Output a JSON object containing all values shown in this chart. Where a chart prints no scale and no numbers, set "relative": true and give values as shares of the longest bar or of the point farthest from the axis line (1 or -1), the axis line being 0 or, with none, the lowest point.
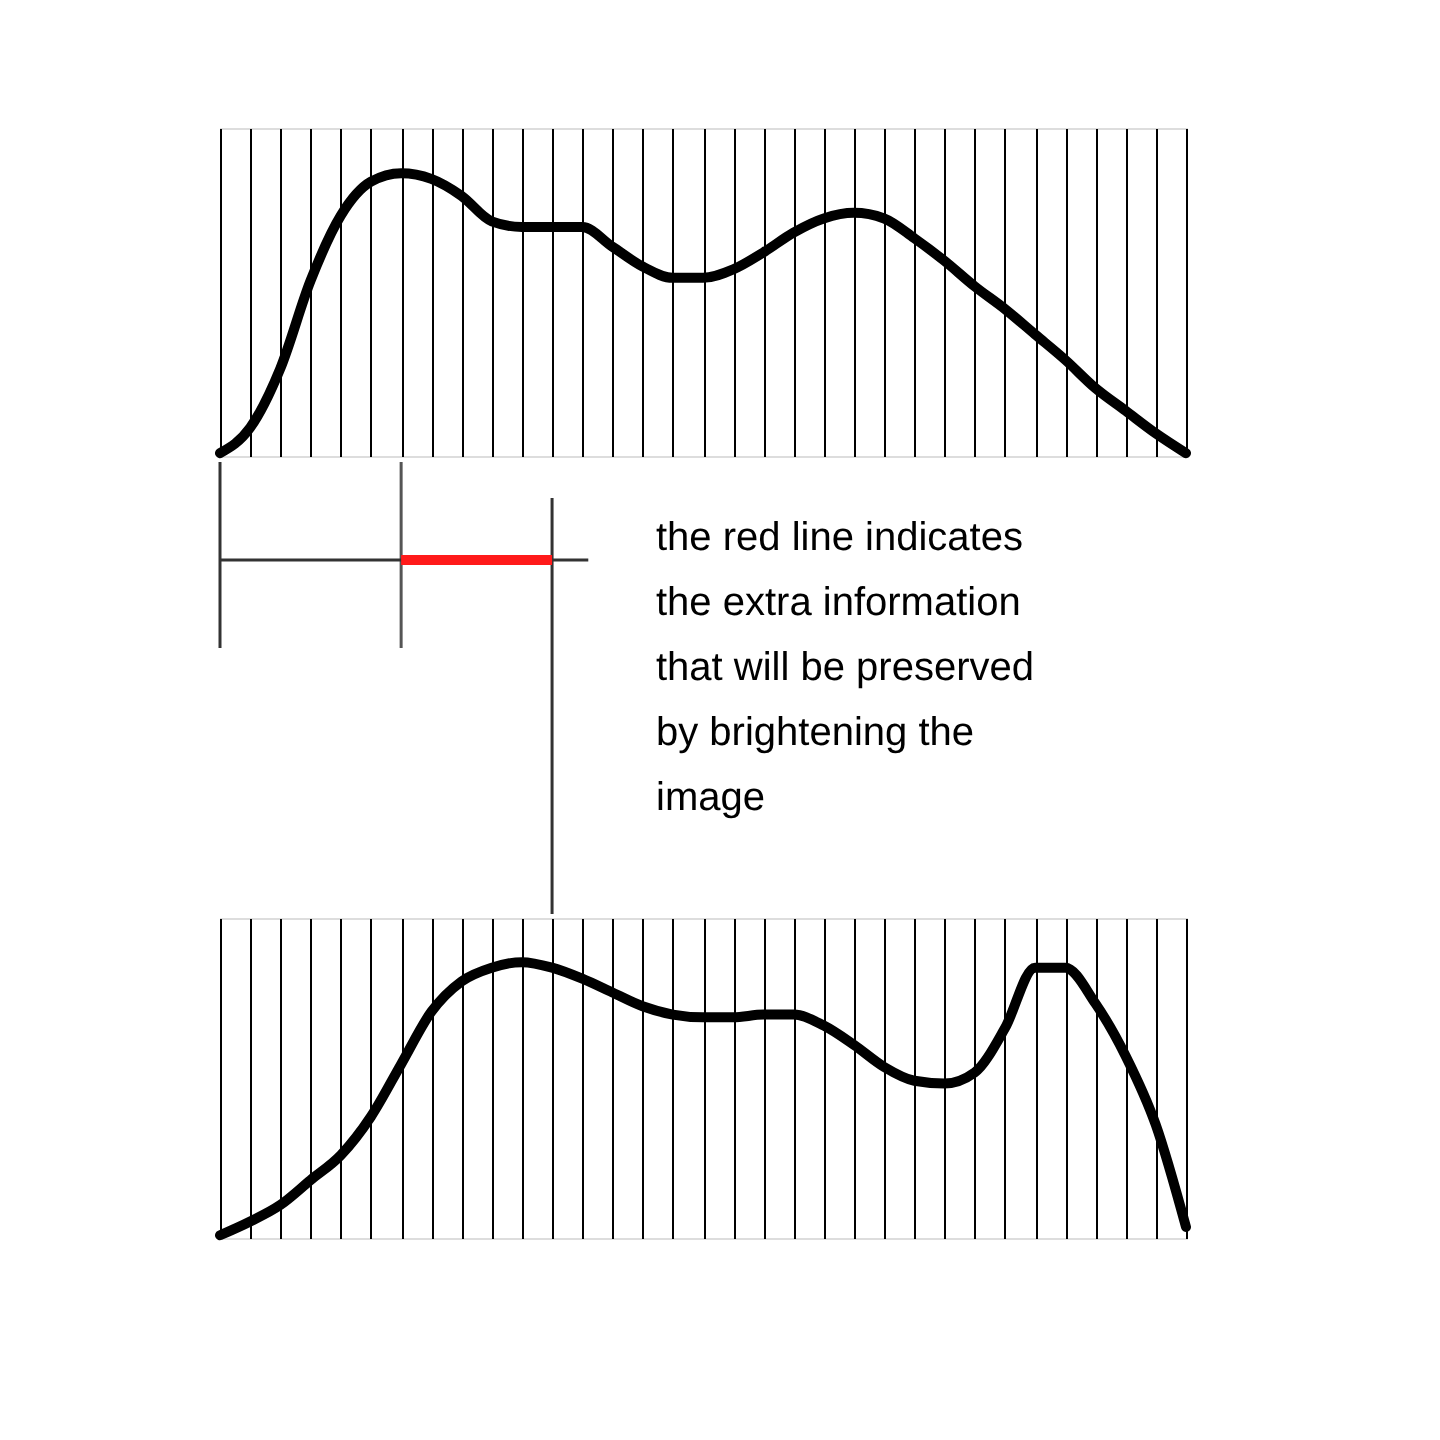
{
  "chart_data": [
    {
      "type": "line",
      "relative": true,
      "grid": "x",
      "marker": "none",
      "line_style": "solid",
      "tick_labels": false,
      "categories": [
        null,
        null,
        null,
        null,
        null,
        null,
        null,
        null,
        null,
        null,
        null,
        null,
        null,
        null,
        null,
        null,
        null,
        null,
        null,
        null,
        null,
        null,
        null,
        null,
        null,
        null,
        null,
        null,
        null,
        null,
        null,
        null,
        null
      ],
      "series": [
        {
          "color": "#000000",
          "values": [
            0.01,
            0.1,
            0.31,
            0.62,
            0.85,
            0.97,
            1.0,
            0.98,
            0.92,
            0.83,
            0.81,
            0.81,
            0.81,
            0.74,
            0.67,
            0.63,
            0.63,
            0.66,
            0.72,
            0.79,
            0.84,
            0.86,
            0.84,
            0.77,
            0.69,
            0.6,
            0.52,
            0.43,
            0.34,
            0.24,
            0.16,
            0.08,
            0.01
          ]
        }
      ]
    },
    {
      "type": "other",
      "annotations": [
        "the red line indicates the extra information that will be preserved by brightening the image"
      ]
    },
    {
      "type": "line",
      "relative": true,
      "grid": "x",
      "marker": "none",
      "line_style": "solid",
      "tick_labels": false,
      "categories": [
        null,
        null,
        null,
        null,
        null,
        null,
        null,
        null,
        null,
        null,
        null,
        null,
        null,
        null,
        null,
        null,
        null,
        null,
        null,
        null,
        null,
        null,
        null,
        null,
        null,
        null,
        null,
        null,
        null,
        null,
        null,
        null,
        null
      ],
      "series": [
        {
          "color": "#000000",
          "values": [
            0.01,
            0.06,
            0.12,
            0.21,
            0.3,
            0.44,
            0.63,
            0.82,
            0.93,
            0.98,
            1.0,
            0.98,
            0.94,
            0.89,
            0.84,
            0.81,
            0.8,
            0.8,
            0.81,
            0.81,
            0.77,
            0.7,
            0.62,
            0.57,
            0.56,
            0.6,
            0.76,
            0.98,
            0.98,
            0.85,
            0.66,
            0.41,
            0.04
          ]
        }
      ]
    }
  ]
}
